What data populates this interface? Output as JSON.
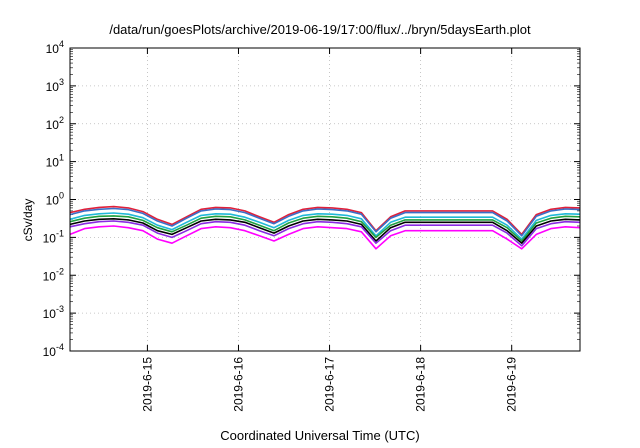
{
  "chart_data": {
    "type": "line",
    "title": "/data/run/goesPlots/archive/2019-06-19/17:00/flux/../bryn/5daysEarth.plot",
    "xlabel": "Coordinated Universal Time (UTC)",
    "ylabel": "cSv/day",
    "yscale": "log",
    "ylim": [
      0.0001,
      10000
    ],
    "yticks": [
      {
        "base": "10",
        "exp": "-4"
      },
      {
        "base": "10",
        "exp": "-3"
      },
      {
        "base": "10",
        "exp": "-2"
      },
      {
        "base": "10",
        "exp": "-1"
      },
      {
        "base": "10",
        "exp": "0"
      },
      {
        "base": "10",
        "exp": "1"
      },
      {
        "base": "10",
        "exp": "2"
      },
      {
        "base": "10",
        "exp": "3"
      },
      {
        "base": "10",
        "exp": "4"
      }
    ],
    "xlim_days": [
      14.15,
      19.75
    ],
    "xtick_labels": [
      "2019-6-15",
      "2019-6-16",
      "2019-6-17",
      "2019-6-18",
      "2019-6-19"
    ],
    "grid": true,
    "series": [
      {
        "color": "#e0203a",
        "values": [
          0.45,
          0.55,
          0.62,
          0.65,
          0.6,
          0.48,
          0.3,
          0.22,
          0.35,
          0.55,
          0.62,
          0.6,
          0.5,
          0.35,
          0.25,
          0.4,
          0.55,
          0.62,
          0.6,
          0.55,
          0.45,
          0.15,
          0.35,
          0.5,
          0.5,
          0.5,
          0.5,
          0.5,
          0.5,
          0.5,
          0.3,
          0.12,
          0.4,
          0.55,
          0.62,
          0.6
        ]
      },
      {
        "color": "#3a6fc8",
        "values": [
          0.4,
          0.5,
          0.55,
          0.58,
          0.54,
          0.43,
          0.27,
          0.2,
          0.32,
          0.5,
          0.56,
          0.54,
          0.45,
          0.32,
          0.23,
          0.36,
          0.5,
          0.56,
          0.54,
          0.5,
          0.41,
          0.14,
          0.32,
          0.45,
          0.45,
          0.45,
          0.45,
          0.45,
          0.45,
          0.45,
          0.27,
          0.11,
          0.36,
          0.5,
          0.56,
          0.54
        ]
      },
      {
        "color": "#20b8d8",
        "values": [
          0.3,
          0.38,
          0.42,
          0.44,
          0.41,
          0.33,
          0.21,
          0.16,
          0.25,
          0.38,
          0.42,
          0.41,
          0.34,
          0.25,
          0.18,
          0.28,
          0.38,
          0.42,
          0.41,
          0.38,
          0.31,
          0.11,
          0.25,
          0.34,
          0.34,
          0.34,
          0.34,
          0.34,
          0.34,
          0.34,
          0.21,
          0.09,
          0.28,
          0.38,
          0.42,
          0.41
        ]
      },
      {
        "color": "#20a040",
        "values": [
          0.26,
          0.32,
          0.36,
          0.37,
          0.35,
          0.28,
          0.18,
          0.14,
          0.21,
          0.32,
          0.36,
          0.35,
          0.29,
          0.21,
          0.15,
          0.24,
          0.32,
          0.36,
          0.35,
          0.32,
          0.26,
          0.1,
          0.21,
          0.29,
          0.29,
          0.29,
          0.29,
          0.29,
          0.29,
          0.29,
          0.18,
          0.08,
          0.24,
          0.32,
          0.36,
          0.35
        ]
      },
      {
        "color": "#000000",
        "values": [
          0.22,
          0.27,
          0.3,
          0.31,
          0.29,
          0.24,
          0.15,
          0.12,
          0.18,
          0.27,
          0.3,
          0.29,
          0.25,
          0.18,
          0.13,
          0.2,
          0.27,
          0.3,
          0.29,
          0.27,
          0.22,
          0.08,
          0.18,
          0.25,
          0.25,
          0.25,
          0.25,
          0.25,
          0.25,
          0.25,
          0.15,
          0.07,
          0.2,
          0.27,
          0.3,
          0.29
        ]
      },
      {
        "color": "#8a2be2",
        "values": [
          0.19,
          0.23,
          0.26,
          0.27,
          0.25,
          0.21,
          0.13,
          0.1,
          0.15,
          0.23,
          0.26,
          0.25,
          0.21,
          0.15,
          0.11,
          0.17,
          0.23,
          0.26,
          0.25,
          0.23,
          0.19,
          0.07,
          0.15,
          0.21,
          0.21,
          0.21,
          0.21,
          0.21,
          0.21,
          0.21,
          0.13,
          0.06,
          0.17,
          0.23,
          0.26,
          0.25
        ]
      },
      {
        "color": "#ff00ff",
        "values": [
          0.12,
          0.17,
          0.19,
          0.2,
          0.18,
          0.15,
          0.09,
          0.07,
          0.11,
          0.17,
          0.19,
          0.18,
          0.15,
          0.11,
          0.08,
          0.12,
          0.17,
          0.19,
          0.18,
          0.17,
          0.14,
          0.05,
          0.11,
          0.15,
          0.15,
          0.15,
          0.15,
          0.15,
          0.15,
          0.15,
          0.09,
          0.05,
          0.12,
          0.17,
          0.19,
          0.18
        ]
      }
    ]
  }
}
